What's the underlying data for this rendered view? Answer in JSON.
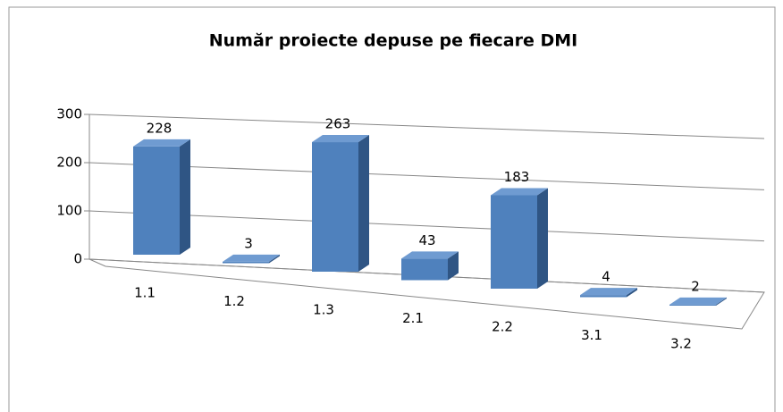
{
  "chart_data": {
    "type": "bar3d",
    "title": "Număr proiecte depuse pe fiecare DMI",
    "categories": [
      "1.1",
      "1.2",
      "1.3",
      "2.1",
      "2.2",
      "3.1",
      "3.2"
    ],
    "values": [
      228,
      3,
      263,
      43,
      183,
      4,
      2
    ],
    "color": "#4f81bd",
    "ylim": [
      0,
      300
    ],
    "yticks": [
      0,
      100,
      200,
      300
    ],
    "grid": true
  }
}
